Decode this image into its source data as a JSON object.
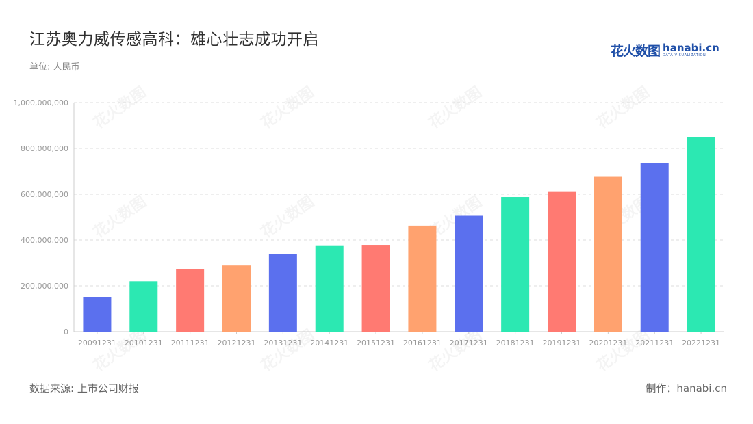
{
  "header": {
    "title": "江苏奥力威传感高科：雄心壮志成功开启",
    "unit": "单位: 人民币"
  },
  "logo": {
    "cn_text": "花火数图",
    "en_text": "hanabi.cn",
    "en_sub": "DATA VISUALIZATION"
  },
  "watermark": {
    "text": "花火数图"
  },
  "footer": {
    "source": "数据来源: 上市公司财报",
    "credit": "制作：hanabi.cn"
  },
  "chart_data": {
    "type": "bar",
    "categories": [
      "20091231",
      "20101231",
      "20111231",
      "20121231",
      "20131231",
      "20141231",
      "20151231",
      "20161231",
      "20171231",
      "20181231",
      "20191231",
      "20201231",
      "20211231",
      "20221231"
    ],
    "values": [
      150000000,
      220000000,
      272000000,
      289000000,
      338000000,
      377000000,
      379000000,
      463000000,
      506000000,
      588000000,
      610000000,
      676000000,
      737000000,
      848000000
    ],
    "colors": [
      "#5b70ee",
      "#2ce8b2",
      "#ff7a72",
      "#ffa26f",
      "#5b70ee",
      "#2ce8b2",
      "#ff7a72",
      "#ffa26f",
      "#5b70ee",
      "#2ce8b2",
      "#ff7a72",
      "#ffa26f",
      "#5b70ee",
      "#2ce8b2"
    ],
    "ylim": [
      0,
      1000000000
    ],
    "yticks": [
      0,
      200000000,
      400000000,
      600000000,
      800000000,
      1000000000
    ],
    "ytick_labels": [
      "0",
      "200,000,000",
      "400,000,000",
      "600,000,000",
      "800,000,000",
      "1,000,000,000"
    ],
    "grid": true,
    "legend": "none"
  }
}
